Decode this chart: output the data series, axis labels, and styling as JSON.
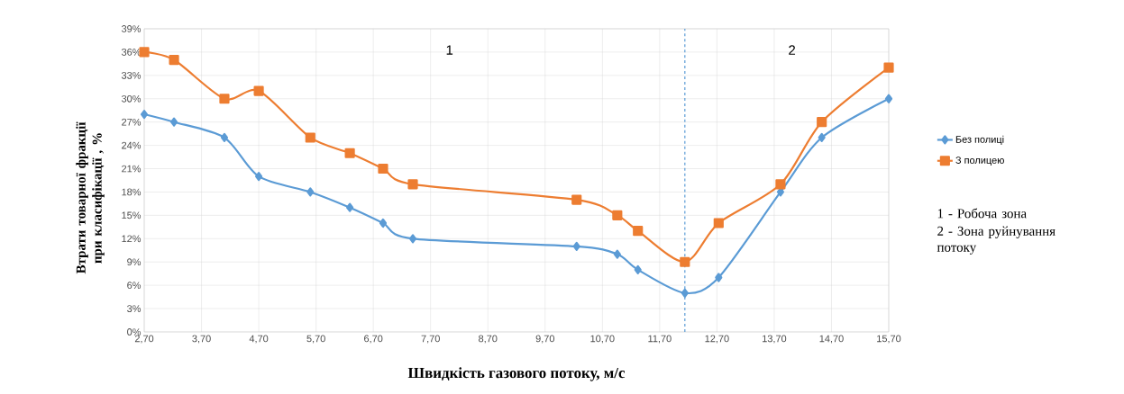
{
  "chart_data": {
    "type": "line",
    "xlabel": "Швидкість газового потоку, м/с",
    "ylabel": "Втрати товарної фракції при класифікації , %",
    "x": [
      2.7,
      3.22,
      4.1,
      4.7,
      5.6,
      6.29,
      6.87,
      7.39,
      10.25,
      10.96,
      11.32,
      12.14,
      12.73,
      13.81,
      14.53,
      15.7
    ],
    "series": [
      {
        "name": "Без полиці",
        "color": "#5b9bd5",
        "marker": "diamond",
        "values": [
          28,
          27,
          25,
          20,
          18,
          16,
          14,
          12,
          11,
          10,
          8,
          5,
          7,
          18,
          25,
          30
        ]
      },
      {
        "name": "З полицею",
        "color": "#ed7d31",
        "marker": "square",
        "values": [
          36,
          35,
          30,
          31,
          25,
          23,
          21,
          19,
          17,
          15,
          13,
          9,
          14,
          19,
          27,
          34
        ]
      }
    ],
    "xlim": [
      2.7,
      15.7
    ],
    "xticks": [
      {
        "value": 2.7,
        "label": "2,70"
      },
      {
        "value": 3.7,
        "label": "3,70"
      },
      {
        "value": 4.7,
        "label": "4,70"
      },
      {
        "value": 5.7,
        "label": "5,70"
      },
      {
        "value": 6.7,
        "label": "6,70"
      },
      {
        "value": 7.7,
        "label": "7,70"
      },
      {
        "value": 8.7,
        "label": "8,70"
      },
      {
        "value": 9.7,
        "label": "9,70"
      },
      {
        "value": 10.7,
        "label": "10,70"
      },
      {
        "value": 11.7,
        "label": "11,70"
      },
      {
        "value": 12.7,
        "label": "12,70"
      },
      {
        "value": 13.7,
        "label": "13,70"
      },
      {
        "value": 14.7,
        "label": "14,70"
      },
      {
        "value": 15.7,
        "label": "15,70"
      }
    ],
    "ylim": [
      0,
      39
    ],
    "yticks": [
      {
        "value": 0,
        "label": "0%"
      },
      {
        "value": 3,
        "label": "3%"
      },
      {
        "value": 6,
        "label": "6%"
      },
      {
        "value": 9,
        "label": "9%"
      },
      {
        "value": 12,
        "label": "12%"
      },
      {
        "value": 15,
        "label": "15%"
      },
      {
        "value": 18,
        "label": "18%"
      },
      {
        "value": 21,
        "label": "21%"
      },
      {
        "value": 24,
        "label": "24%"
      },
      {
        "value": 27,
        "label": "27%"
      },
      {
        "value": 30,
        "label": "30%"
      },
      {
        "value": 33,
        "label": "33%"
      },
      {
        "value": 36,
        "label": "36%"
      },
      {
        "value": 39,
        "label": "39%"
      }
    ],
    "ref_lines": [
      {
        "axis": "x",
        "value": 12.14,
        "color": "#5b9bd5",
        "line_style": "dashed"
      }
    ],
    "annotations": [
      "1",
      "2",
      "1 - Робоча зона",
      "2 - Зона руйнування потоку"
    ],
    "grid": true,
    "legend": "right",
    "line_style": "solid"
  }
}
